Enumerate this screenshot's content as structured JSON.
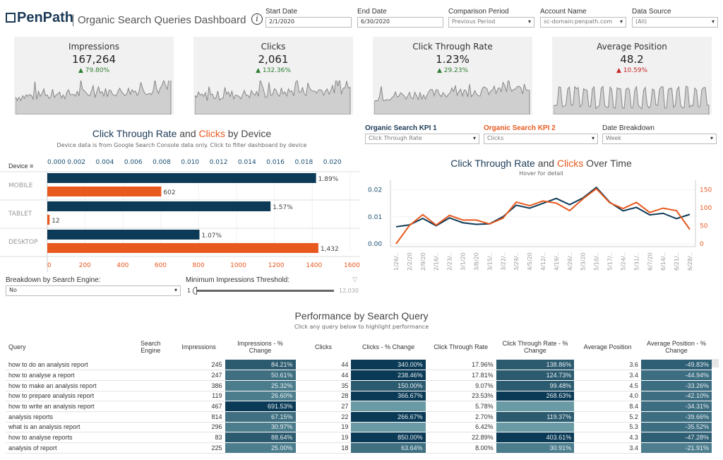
{
  "header": {
    "logo": "PenPath",
    "title": "Organic Search Queries Dashboard",
    "info_icon": "i",
    "filters": [
      {
        "label": "Start Date",
        "value": "2/1/2020",
        "type": "text"
      },
      {
        "label": "End Date",
        "value": "6/30/2020",
        "type": "text"
      },
      {
        "label": "Comparison Period",
        "value": "Previous Period",
        "type": "select"
      },
      {
        "label": "Account Name",
        "value": "sc-domain:penpath.com",
        "type": "select"
      },
      {
        "label": "Data Source",
        "value": "(All)",
        "type": "select"
      }
    ]
  },
  "kpis": [
    {
      "title": "Impressions",
      "value": "167,264",
      "change": "▲ 79.80%",
      "trend": "up-good"
    },
    {
      "title": "Clicks",
      "value": "2,061",
      "change": "▲ 132.36%",
      "trend": "up-good"
    },
    {
      "title": "Click Through Rate",
      "value": "1.23%",
      "change": "▲ 29.23%",
      "trend": "up-good"
    },
    {
      "title": "Average Position",
      "value": "48.2",
      "change": "▲ 10.59%",
      "trend": "up-bad"
    }
  ],
  "colors": {
    "blue": "#0d3a56",
    "orange": "#e8591f",
    "green": "#2e7d32",
    "red": "#c62828",
    "card_bg": "#f1f1f1"
  },
  "device_chart": {
    "title_a": "Click Through Rate",
    "title_and": " and ",
    "title_b": "Clicks",
    "title_c": " by Device",
    "subtitle": "Device data is from Google Search Console data only. Click to filter dashboard by device",
    "row_header": "Device"
  },
  "kpi_selectors": [
    {
      "label": "Organic Search KPI 1",
      "value": "Click Through Rate"
    },
    {
      "label": "Organic Search KPI 2",
      "value": "Clicks"
    },
    {
      "label": "Date Breakdown",
      "value": "Week"
    }
  ],
  "time_chart": {
    "title_a": "Click Through Rate",
    "title_and": " and ",
    "title_b": "Clicks",
    "title_c": " Over Time",
    "subtitle": "Hover for detail"
  },
  "controls": {
    "breakdown_label": "Breakdown by Search Engine:",
    "breakdown_value": "No",
    "threshold_label": "Minimum Impressions Threshold:",
    "threshold_min": "1",
    "threshold_max": "12,030"
  },
  "chart_data": [
    {
      "type": "bar",
      "categories": [
        "MOBILE",
        "TABLET",
        "DESKTOP"
      ],
      "series": [
        {
          "name": "Click Through Rate",
          "values": [
            0.0189,
            0.0157,
            0.0107
          ],
          "labels": [
            "1.89%",
            "1.57%",
            "1.07%"
          ],
          "axis": "top",
          "ticks": [
            "0.000",
            "0.002",
            "0.004",
            "0.006",
            "0.008",
            "0.010",
            "0.012",
            "0.014",
            "0.016",
            "0.018",
            "0.020"
          ],
          "range": [
            0,
            0.0215
          ]
        },
        {
          "name": "Clicks",
          "values": [
            602,
            12,
            1432
          ],
          "labels": [
            "602",
            "12",
            "1,432"
          ],
          "axis": "bottom",
          "ticks": [
            "0",
            "200",
            "400",
            "600",
            "800",
            "1000",
            "1200",
            "1400",
            "1600"
          ],
          "range": [
            0,
            1615
          ]
        }
      ]
    },
    {
      "type": "line",
      "categories": [
        "1/26/..",
        "2/2/20",
        "2/9/20",
        "2/16/..",
        "2/23/..",
        "3/1/20",
        "3/8/20",
        "3/15/..",
        "3/22/..",
        "3/29/..",
        "4/5/20",
        "4/12/..",
        "4/19/..",
        "4/26/..",
        "5/3/20",
        "5/10/..",
        "5/17/..",
        "5/24/..",
        "5/31/..",
        "6/7/20",
        "6/14/..",
        "6/21/..",
        "6/28/.."
      ],
      "series": [
        {
          "name": "Click Through Rate",
          "axis": "left",
          "ticks": [
            "0.00",
            "0.01",
            "0.02"
          ],
          "range": [
            0,
            0.022
          ],
          "values": [
            0.0063,
            0.007,
            0.0094,
            0.0067,
            0.0096,
            0.0078,
            0.0072,
            0.0074,
            0.01,
            0.0143,
            0.0132,
            0.015,
            0.0168,
            0.0145,
            0.017,
            0.0209,
            0.0154,
            0.0122,
            0.0135,
            0.0107,
            0.0113,
            0.0093,
            0.0109
          ]
        },
        {
          "name": "Clicks",
          "axis": "right",
          "ticks": [
            "0",
            "50",
            "100",
            "150"
          ],
          "range": [
            0,
            165
          ],
          "values": [
            0,
            51,
            81,
            52,
            79,
            66,
            66,
            55,
            71,
            116,
            106,
            119,
            113,
            92,
            125,
            153,
            114,
            98,
            115,
            87,
            99,
            92,
            40
          ]
        }
      ]
    }
  ],
  "table": {
    "title": "Performance by Search Query",
    "subtitle": "Click any query below to highlight performance",
    "columns": [
      "Query",
      "Search Engine",
      "Impressions",
      "Impressions - % Change",
      "Clicks",
      "Clicks - % Change",
      "Click Through Rate",
      "Click Through Rate - % Change",
      "Average Position",
      "Average Position - % Change"
    ],
    "rows": [
      [
        "how to do an analysis report",
        "",
        "245",
        "84.21%",
        "44",
        "340.00%",
        "17.96%",
        "138.86%",
        "3.6",
        "-49.83%"
      ],
      [
        "how to analyse a report",
        "",
        "247",
        "50.61%",
        "44",
        "238.46%",
        "17.81%",
        "124.73%",
        "3.4",
        "-44.94%"
      ],
      [
        "how to make an analysis report",
        "",
        "386",
        "25.32%",
        "35",
        "150.00%",
        "9.07%",
        "99.48%",
        "4.5",
        "-33.26%"
      ],
      [
        "how to prepare analysis report",
        "",
        "119",
        "26.60%",
        "28",
        "366.67%",
        "23.53%",
        "268.63%",
        "4.0",
        "-42.10%"
      ],
      [
        "how to write an analysis report",
        "",
        "467",
        "691.53%",
        "27",
        "",
        "5.78%",
        "",
        "8.4",
        "-34.31%"
      ],
      [
        "analysis reports",
        "",
        "814",
        "67.15%",
        "22",
        "266.67%",
        "2.70%",
        "119.37%",
        "5.2",
        "-39.66%"
      ],
      [
        "what is an analysis report",
        "",
        "296",
        "30.97%",
        "19",
        "",
        "6.42%",
        "",
        "5.3",
        "-35.52%"
      ],
      [
        "how to analyse reports",
        "",
        "83",
        "88.64%",
        "19",
        "850.00%",
        "22.89%",
        "403.61%",
        "4.3",
        "-47.28%"
      ],
      [
        "analysis of report",
        "",
        "225",
        "25.00%",
        "18",
        "63.64%",
        "8.00%",
        "30.91%",
        "3.4",
        "-21.91%"
      ]
    ]
  }
}
